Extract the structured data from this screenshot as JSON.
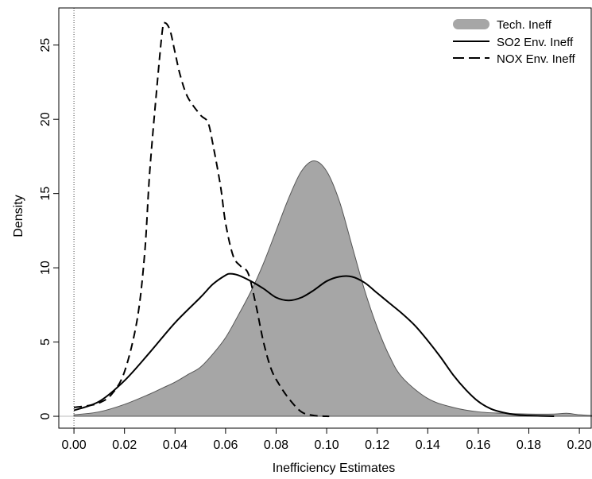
{
  "chart_data": {
    "type": "area",
    "xlabel": "Inefficiency Estimates",
    "ylabel": "Density",
    "xlim": [
      -0.006,
      0.205
    ],
    "ylim": [
      -0.8,
      27.5
    ],
    "x_ticks": [
      "0.00",
      "0.02",
      "0.04",
      "0.06",
      "0.08",
      "0.10",
      "0.12",
      "0.14",
      "0.16",
      "0.18",
      "0.20"
    ],
    "y_ticks": [
      "0",
      "5",
      "10",
      "15",
      "20",
      "25"
    ],
    "legend_position": "top-right",
    "reference_lines": {
      "x_zero_dotted": true,
      "y_zero_solid": true
    },
    "series": [
      {
        "name": "Tech. Ineff",
        "style": "filled",
        "color": "#a6a6a6",
        "points": [
          [
            0.0,
            0.1
          ],
          [
            0.01,
            0.3
          ],
          [
            0.02,
            0.8
          ],
          [
            0.03,
            1.5
          ],
          [
            0.035,
            1.9
          ],
          [
            0.04,
            2.3
          ],
          [
            0.045,
            2.8
          ],
          [
            0.05,
            3.3
          ],
          [
            0.055,
            4.2
          ],
          [
            0.06,
            5.3
          ],
          [
            0.065,
            6.8
          ],
          [
            0.07,
            8.4
          ],
          [
            0.075,
            10.3
          ],
          [
            0.08,
            12.5
          ],
          [
            0.085,
            14.7
          ],
          [
            0.09,
            16.5
          ],
          [
            0.095,
            17.2
          ],
          [
            0.1,
            16.5
          ],
          [
            0.105,
            14.5
          ],
          [
            0.11,
            11.5
          ],
          [
            0.115,
            8.5
          ],
          [
            0.12,
            6.0
          ],
          [
            0.125,
            4.0
          ],
          [
            0.13,
            2.6
          ],
          [
            0.14,
            1.2
          ],
          [
            0.15,
            0.6
          ],
          [
            0.16,
            0.3
          ],
          [
            0.17,
            0.2
          ],
          [
            0.18,
            0.15
          ],
          [
            0.19,
            0.15
          ],
          [
            0.195,
            0.2
          ],
          [
            0.2,
            0.1
          ],
          [
            0.205,
            0.05
          ]
        ]
      },
      {
        "name": "SO2 Env. Ineff",
        "style": "solid",
        "color": "#000000",
        "points": [
          [
            0.0,
            0.4
          ],
          [
            0.01,
            1.0
          ],
          [
            0.02,
            2.4
          ],
          [
            0.03,
            4.3
          ],
          [
            0.04,
            6.3
          ],
          [
            0.05,
            8.0
          ],
          [
            0.055,
            8.9
          ],
          [
            0.06,
            9.5
          ],
          [
            0.062,
            9.6
          ],
          [
            0.065,
            9.5
          ],
          [
            0.07,
            9.1
          ],
          [
            0.075,
            8.6
          ],
          [
            0.08,
            8.0
          ],
          [
            0.085,
            7.8
          ],
          [
            0.09,
            8.0
          ],
          [
            0.095,
            8.5
          ],
          [
            0.1,
            9.1
          ],
          [
            0.105,
            9.4
          ],
          [
            0.11,
            9.4
          ],
          [
            0.115,
            9.0
          ],
          [
            0.12,
            8.3
          ],
          [
            0.125,
            7.6
          ],
          [
            0.13,
            6.9
          ],
          [
            0.135,
            6.1
          ],
          [
            0.14,
            5.1
          ],
          [
            0.145,
            4.0
          ],
          [
            0.15,
            2.8
          ],
          [
            0.155,
            1.8
          ],
          [
            0.16,
            1.0
          ],
          [
            0.165,
            0.5
          ],
          [
            0.17,
            0.25
          ],
          [
            0.175,
            0.1
          ],
          [
            0.18,
            0.05
          ],
          [
            0.19,
            0.0
          ]
        ]
      },
      {
        "name": "NOX Env. Ineff",
        "style": "dashed",
        "color": "#000000",
        "points": [
          [
            0.0,
            0.6
          ],
          [
            0.005,
            0.7
          ],
          [
            0.01,
            0.9
          ],
          [
            0.015,
            1.5
          ],
          [
            0.02,
            3.0
          ],
          [
            0.025,
            6.5
          ],
          [
            0.028,
            11.0
          ],
          [
            0.03,
            16.5
          ],
          [
            0.033,
            22.5
          ],
          [
            0.035,
            26.0
          ],
          [
            0.036,
            26.5
          ],
          [
            0.038,
            26.0
          ],
          [
            0.04,
            24.5
          ],
          [
            0.042,
            23.0
          ],
          [
            0.045,
            21.5
          ],
          [
            0.05,
            20.3
          ],
          [
            0.053,
            19.8
          ],
          [
            0.055,
            18.3
          ],
          [
            0.058,
            15.5
          ],
          [
            0.06,
            13.0
          ],
          [
            0.063,
            10.8
          ],
          [
            0.066,
            10.1
          ],
          [
            0.069,
            9.6
          ],
          [
            0.072,
            7.5
          ],
          [
            0.075,
            5.0
          ],
          [
            0.078,
            3.2
          ],
          [
            0.081,
            2.2
          ],
          [
            0.085,
            1.2
          ],
          [
            0.09,
            0.3
          ],
          [
            0.095,
            0.05
          ],
          [
            0.1,
            0.0
          ],
          [
            0.101,
            0.0
          ]
        ]
      }
    ]
  }
}
